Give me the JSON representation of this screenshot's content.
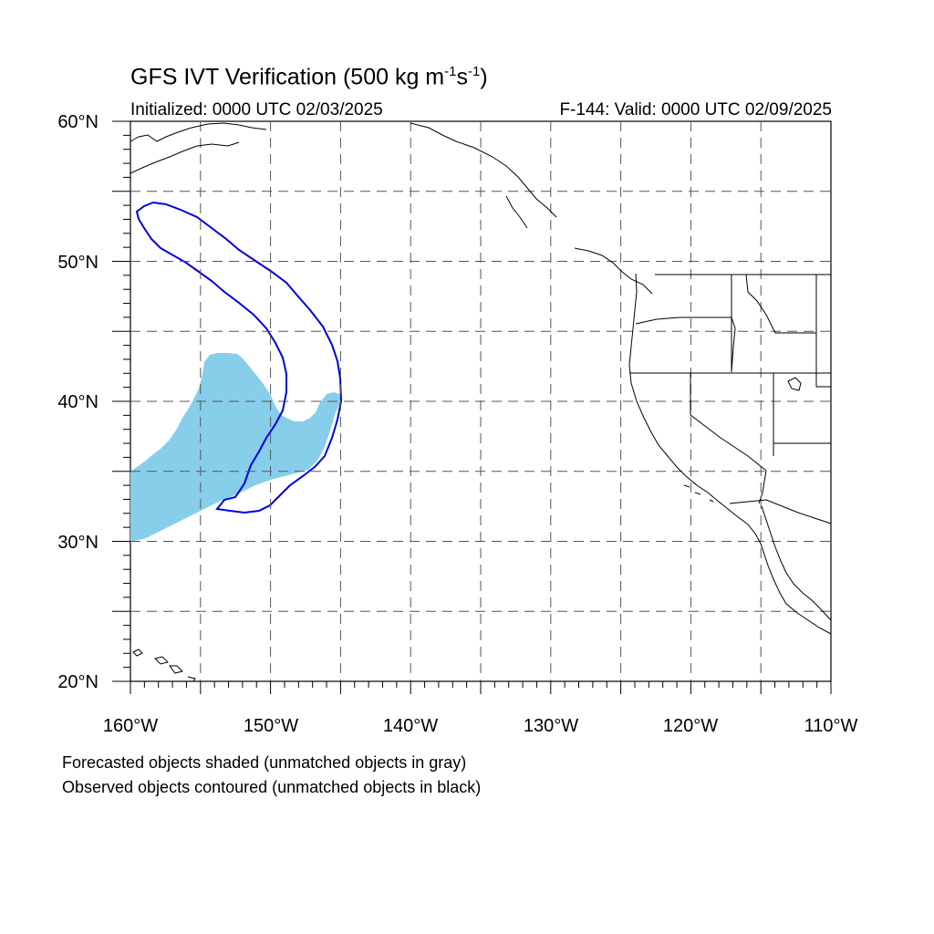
{
  "title": {
    "main": "GFS IVT Verification (500 kg m",
    "sup1": "-1",
    "mid": "s",
    "sup2": "-1",
    "end": ")"
  },
  "initialized": "Initialized: 0000 UTC 02/03/2025",
  "valid": "F-144: Valid: 0000 UTC 02/09/2025",
  "axes": {
    "lat_labels": [
      {
        "text": "60°N",
        "value": 60
      },
      {
        "text": "50°N",
        "value": 50
      },
      {
        "text": "40°N",
        "value": 40
      },
      {
        "text": "30°N",
        "value": 30
      },
      {
        "text": "20°N",
        "value": 20
      }
    ],
    "lon_labels": [
      {
        "text": "160°W",
        "value": -160
      },
      {
        "text": "150°W",
        "value": -150
      },
      {
        "text": "140°W",
        "value": -140
      },
      {
        "text": "130°W",
        "value": -130
      },
      {
        "text": "120°W",
        "value": -120
      },
      {
        "text": "110°W",
        "value": -110
      }
    ],
    "lat_range": [
      20,
      60
    ],
    "lon_range": [
      -160,
      -110
    ],
    "grid_lat_step": 5,
    "grid_lon_step": 5
  },
  "legend": {
    "forecast": "Forecasted objects shaded (unmatched objects in gray)",
    "observed": "Observed objects contoured (unmatched objects in black)"
  },
  "colors": {
    "forecast_fill": "#87ceeb",
    "observed_contour": "#0000dd",
    "coastline": "#000000",
    "grid": "#555555"
  }
}
